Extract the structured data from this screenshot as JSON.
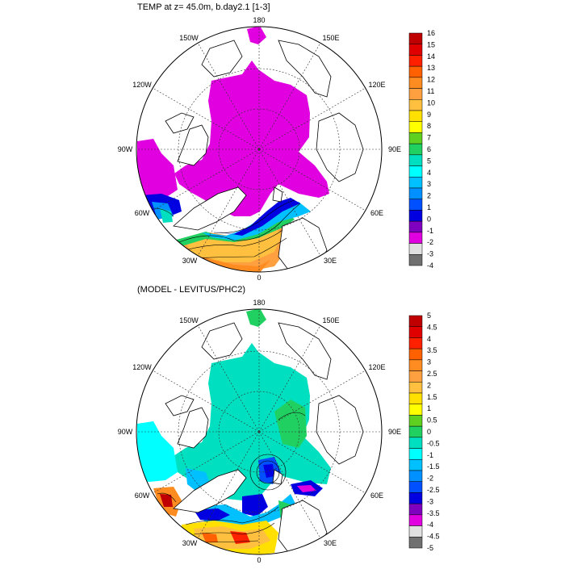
{
  "panel1": {
    "title": "TEMP at z=  45.0m, b.day2.1 [1-3]",
    "lon_labels": {
      "n": "180",
      "nw": "150W",
      "ne": "150E",
      "wnw": "120W",
      "ene": "120E",
      "w": "90W",
      "e": "90E",
      "wsw": "60W",
      "ese": "60E",
      "ssw": "30W",
      "sse": "30E",
      "s": "0"
    },
    "colorbar": {
      "labels": [
        "16",
        "15",
        "14",
        "13",
        "12",
        "11",
        "10",
        "9",
        "8",
        "7",
        "6",
        "5",
        "4",
        "3",
        "2",
        "1",
        "0",
        "-1",
        "-2",
        "-3",
        "-4"
      ],
      "colors": [
        "#c00000",
        "#e00000",
        "#ff2000",
        "#ff6000",
        "#ff8c20",
        "#ffa040",
        "#ffc040",
        "#ffe000",
        "#ffff00",
        "#60d020",
        "#20d060",
        "#00e0c0",
        "#00ffff",
        "#00c0ff",
        "#0090ff",
        "#0050ff",
        "#0000e0",
        "#8000c0",
        "#e000e0",
        "#e0e0e0",
        "#707070"
      ]
    }
  },
  "panel2": {
    "title": "(MODEL - LEVITUS/PHC2)",
    "lon_labels": {
      "n": "180",
      "nw": "150W",
      "ne": "150E",
      "wnw": "120W",
      "ene": "120E",
      "w": "90W",
      "e": "90E",
      "wsw": "60W",
      "ese": "60E",
      "ssw": "30W",
      "sse": "30E",
      "s": "0"
    },
    "colorbar": {
      "labels": [
        "5",
        "4.5",
        "4",
        "3.5",
        "3",
        "2.5",
        "2",
        "1.5",
        "1",
        "0.5",
        "0",
        "-0.5",
        "-1",
        "-1.5",
        "-2",
        "-2.5",
        "-3",
        "-3.5",
        "-4",
        "-4.5",
        "-5"
      ],
      "colors": [
        "#c00000",
        "#e00000",
        "#ff2000",
        "#ff6000",
        "#ff8c20",
        "#ffa040",
        "#ffc040",
        "#ffe000",
        "#ffff00",
        "#60d020",
        "#20d060",
        "#00e0c0",
        "#00ffff",
        "#00c0ff",
        "#0090ff",
        "#0050ff",
        "#0000e0",
        "#8000c0",
        "#e000e0",
        "#e0e0e0",
        "#707070"
      ]
    }
  }
}
